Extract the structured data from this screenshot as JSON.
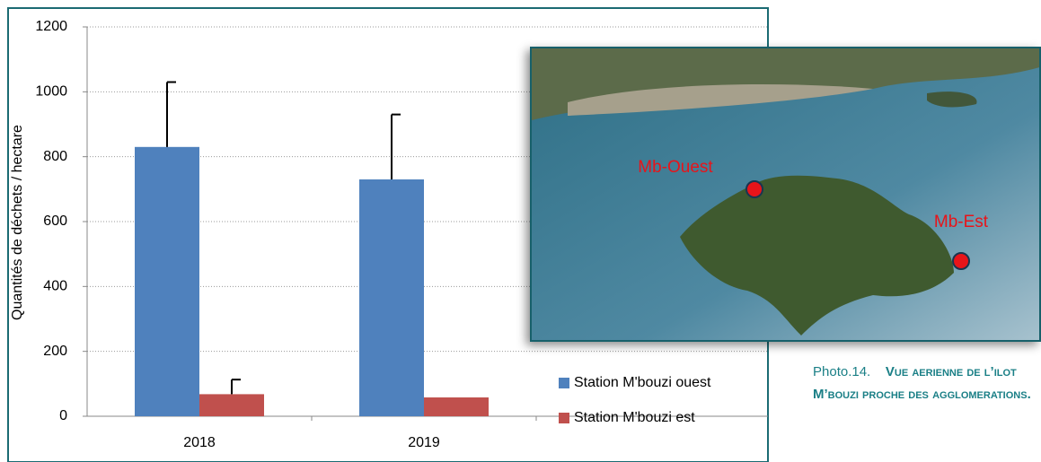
{
  "chart_data": {
    "type": "bar",
    "y_label": "Quantités de déchets / hectare",
    "categories": [
      "2018",
      "2019"
    ],
    "series": [
      {
        "name": "Station M'bouzi ouest",
        "color": "#4f81bd",
        "values": [
          830,
          730
        ],
        "errors": [
          200,
          200
        ]
      },
      {
        "name": "Station M'bouzi est",
        "color": "#c0504d",
        "values": [
          68,
          58
        ],
        "errors": [
          45,
          null
        ]
      }
    ],
    "ylim": [
      0,
      1200
    ],
    "yticks": [
      0,
      200,
      400,
      600,
      800,
      1000,
      1200
    ],
    "grid": true,
    "legend": "lower right"
  },
  "photo": {
    "labels": [
      "Mb-Ouest",
      "Mb-Est"
    ],
    "caption_label": "Photo.14.",
    "caption_title": "Vue aerienne de l’ilot M’bouzi proche des agglomerations."
  }
}
